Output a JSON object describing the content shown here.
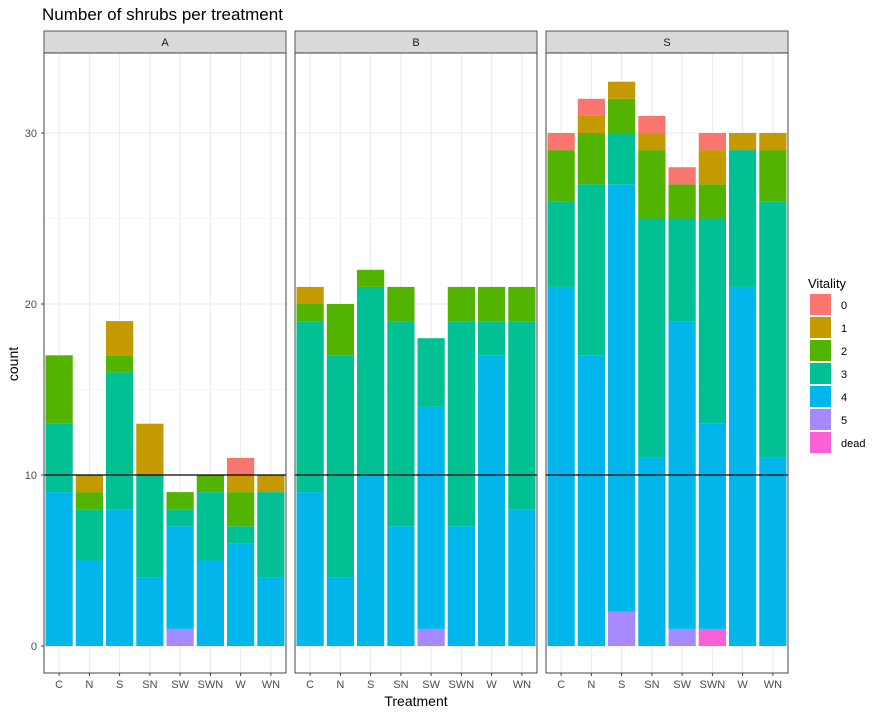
{
  "chart_data": {
    "type": "bar",
    "stacked": true,
    "title": "Number of shrubs per treatment",
    "xlabel": "Treatment",
    "ylabel": "count",
    "ylim": [
      0,
      35
    ],
    "yticks": [
      0,
      10,
      20,
      30
    ],
    "hline": 10,
    "grid": true,
    "legend": {
      "title": "Vitality",
      "placement": "right",
      "entries": [
        {
          "label": "0",
          "color": "#F8766D"
        },
        {
          "label": "1",
          "color": "#C49A00"
        },
        {
          "label": "2",
          "color": "#53B400"
        },
        {
          "label": "3",
          "color": "#00C094"
        },
        {
          "label": "4",
          "color": "#00B6EB"
        },
        {
          "label": "5",
          "color": "#A58AFF"
        },
        {
          "label": "dead",
          "color": "#FB61D7"
        }
      ]
    },
    "categories": [
      "C",
      "N",
      "S",
      "SN",
      "SW",
      "SWN",
      "W",
      "WN"
    ],
    "stack_order_bottom_to_top": [
      "dead",
      "5",
      "4",
      "3",
      "2",
      "1",
      "0"
    ],
    "panels": [
      {
        "name": "A",
        "bars": [
          {
            "category": "C",
            "counts": {
              "4": 9,
              "3": 4,
              "2": 4
            }
          },
          {
            "category": "N",
            "counts": {
              "4": 5,
              "3": 3,
              "2": 1,
              "1": 1
            }
          },
          {
            "category": "S",
            "counts": {
              "4": 8,
              "3": 8,
              "2": 1,
              "1": 2
            }
          },
          {
            "category": "SN",
            "counts": {
              "4": 4,
              "3": 6,
              "1": 3
            }
          },
          {
            "category": "SW",
            "counts": {
              "5": 1,
              "4": 6,
              "3": 1,
              "2": 1
            }
          },
          {
            "category": "SWN",
            "counts": {
              "4": 5,
              "3": 4,
              "2": 1
            }
          },
          {
            "category": "W",
            "counts": {
              "4": 6,
              "3": 1,
              "2": 2,
              "1": 1,
              "0": 1
            }
          },
          {
            "category": "WN",
            "counts": {
              "4": 4,
              "3": 5,
              "1": 1
            }
          }
        ]
      },
      {
        "name": "B",
        "bars": [
          {
            "category": "C",
            "counts": {
              "4": 9,
              "3": 10,
              "2": 1,
              "1": 1
            }
          },
          {
            "category": "N",
            "counts": {
              "4": 4,
              "3": 13,
              "2": 3
            }
          },
          {
            "category": "S",
            "counts": {
              "4": 10,
              "3": 11,
              "2": 1
            }
          },
          {
            "category": "SN",
            "counts": {
              "4": 7,
              "3": 12,
              "2": 2
            }
          },
          {
            "category": "SW",
            "counts": {
              "5": 1,
              "4": 13,
              "3": 4
            }
          },
          {
            "category": "SWN",
            "counts": {
              "4": 7,
              "3": 12,
              "2": 2
            }
          },
          {
            "category": "W",
            "counts": {
              "4": 17,
              "3": 2,
              "2": 2
            }
          },
          {
            "category": "WN",
            "counts": {
              "4": 8,
              "3": 11,
              "2": 2
            }
          }
        ]
      },
      {
        "name": "S",
        "bars": [
          {
            "category": "C",
            "counts": {
              "4": 21,
              "3": 5,
              "2": 3,
              "0": 1
            }
          },
          {
            "category": "N",
            "counts": {
              "4": 17,
              "3": 10,
              "2": 3,
              "1": 1,
              "0": 1
            }
          },
          {
            "category": "S",
            "counts": {
              "5": 2,
              "4": 25,
              "3": 3,
              "2": 2,
              "1": 1
            }
          },
          {
            "category": "SN",
            "counts": {
              "4": 11,
              "3": 14,
              "2": 4,
              "1": 1,
              "0": 1
            }
          },
          {
            "category": "SW",
            "counts": {
              "5": 1,
              "4": 18,
              "3": 6,
              "2": 2,
              "0": 1
            }
          },
          {
            "category": "SWN",
            "counts": {
              "dead": 1,
              "4": 12,
              "3": 12,
              "2": 2,
              "1": 2,
              "0": 1
            }
          },
          {
            "category": "W",
            "counts": {
              "4": 21,
              "3": 8,
              "1": 1
            }
          },
          {
            "category": "WN",
            "counts": {
              "4": 11,
              "3": 15,
              "2": 3,
              "1": 1
            }
          }
        ]
      }
    ]
  }
}
